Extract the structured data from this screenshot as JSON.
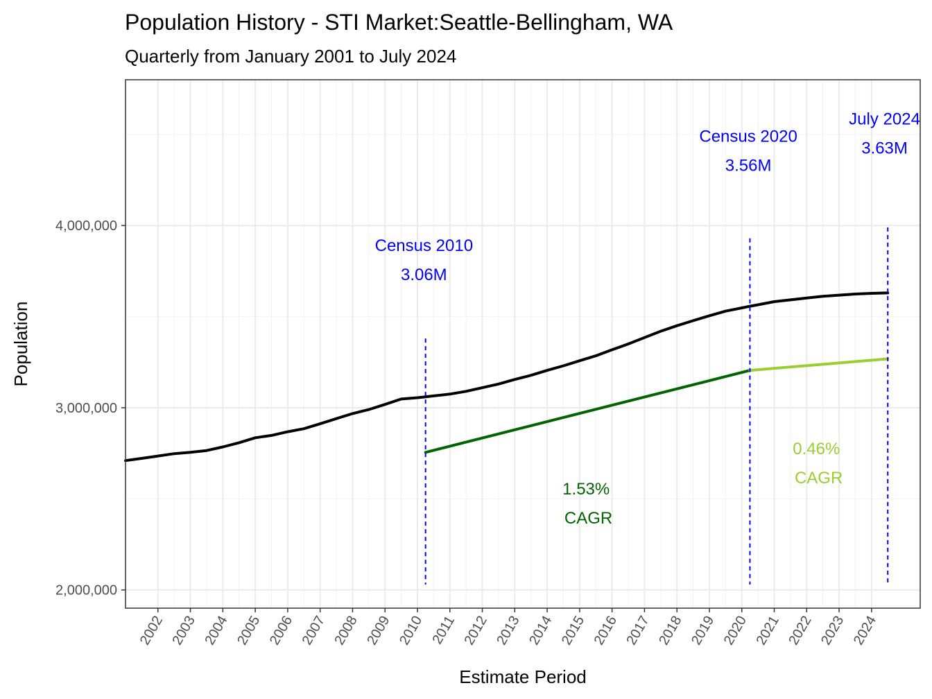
{
  "chart_data": {
    "type": "line",
    "title": "Population History - STI Market:Seattle-Bellingham, WA",
    "subtitle": "Quarterly from January 2001 to July 2024",
    "xlabel": "Estimate Period",
    "ylabel": "Population",
    "xlim": [
      2001.0,
      2025.5
    ],
    "ylim": [
      1900000,
      4800000
    ],
    "x_ticks": [
      2002,
      2003,
      2004,
      2005,
      2006,
      2007,
      2008,
      2009,
      2010,
      2011,
      2012,
      2013,
      2014,
      2015,
      2016,
      2017,
      2018,
      2019,
      2020,
      2021,
      2022,
      2023,
      2024
    ],
    "y_ticks": [
      2000000,
      3000000,
      4000000
    ],
    "y_tick_labels": [
      "2,000,000",
      "3,000,000",
      "4,000,000"
    ],
    "grid": true,
    "legend": "none",
    "series": [
      {
        "color": "#000000",
        "points": [
          [
            2001.0,
            2710000
          ],
          [
            2001.5,
            2722000
          ],
          [
            2002.0,
            2735000
          ],
          [
            2002.5,
            2748000
          ],
          [
            2003.0,
            2755000
          ],
          [
            2003.5,
            2765000
          ],
          [
            2004.0,
            2785000
          ],
          [
            2004.5,
            2808000
          ],
          [
            2005.0,
            2835000
          ],
          [
            2005.5,
            2848000
          ],
          [
            2006.0,
            2868000
          ],
          [
            2006.5,
            2885000
          ],
          [
            2007.0,
            2912000
          ],
          [
            2007.5,
            2940000
          ],
          [
            2008.0,
            2968000
          ],
          [
            2008.5,
            2990000
          ],
          [
            2009.0,
            3018000
          ],
          [
            2009.5,
            3048000
          ],
          [
            2010.0,
            3055000
          ],
          [
            2010.25,
            3060000
          ],
          [
            2010.5,
            3065000
          ],
          [
            2011.0,
            3075000
          ],
          [
            2011.5,
            3090000
          ],
          [
            2012.0,
            3110000
          ],
          [
            2012.5,
            3130000
          ],
          [
            2013.0,
            3155000
          ],
          [
            2013.5,
            3178000
          ],
          [
            2014.0,
            3205000
          ],
          [
            2014.5,
            3230000
          ],
          [
            2015.0,
            3258000
          ],
          [
            2015.5,
            3285000
          ],
          [
            2016.0,
            3318000
          ],
          [
            2016.5,
            3350000
          ],
          [
            2017.0,
            3385000
          ],
          [
            2017.5,
            3420000
          ],
          [
            2018.0,
            3450000
          ],
          [
            2018.5,
            3478000
          ],
          [
            2019.0,
            3505000
          ],
          [
            2019.5,
            3530000
          ],
          [
            2020.0,
            3548000
          ],
          [
            2020.25,
            3557000
          ],
          [
            2020.5,
            3565000
          ],
          [
            2021.0,
            3582000
          ],
          [
            2021.5,
            3592000
          ],
          [
            2022.0,
            3602000
          ],
          [
            2022.5,
            3612000
          ],
          [
            2023.0,
            3618000
          ],
          [
            2023.5,
            3624000
          ],
          [
            2024.0,
            3628000
          ],
          [
            2024.5,
            3630000
          ]
        ]
      },
      {
        "color": "#006400",
        "points": [
          [
            2010.25,
            2755000
          ],
          [
            2020.25,
            3205000
          ]
        ]
      },
      {
        "color": "#9acd32",
        "points": [
          [
            2020.25,
            3205000
          ],
          [
            2024.5,
            3268000
          ]
        ]
      }
    ],
    "vlines": [
      {
        "x": 2010.25,
        "y_top": 3380000,
        "y_bottom": 2030000,
        "color": "#0000ff",
        "style": "dashed"
      },
      {
        "x": 2020.25,
        "y_top": 3930000,
        "y_bottom": 2030000,
        "color": "#0000ff",
        "style": "dashed"
      },
      {
        "x": 2024.5,
        "y_top": 3990000,
        "y_bottom": 2030000,
        "color": "#0000ff",
        "style": "dashed"
      }
    ],
    "annotations": [
      {
        "x": 2010.2,
        "y": 3860000,
        "lines": [
          "Census 2010",
          "3.06M"
        ],
        "color": "#0000ff"
      },
      {
        "x": 2020.2,
        "y": 4460000,
        "lines": [
          "Census 2020",
          "3.56M"
        ],
        "color": "#0000ff"
      },
      {
        "x": 2024.4,
        "y": 4555000,
        "lines": [
          "July 2024",
          "3.63M"
        ],
        "color": "#0000ff"
      },
      {
        "x": 2015.2,
        "y": 2525000,
        "lines": [
          "1.53%",
          " CAGR"
        ],
        "color": "#006400"
      },
      {
        "x": 2022.3,
        "y": 2745000,
        "lines": [
          "0.46%",
          " CAGR"
        ],
        "color": "#9acd32"
      }
    ]
  }
}
